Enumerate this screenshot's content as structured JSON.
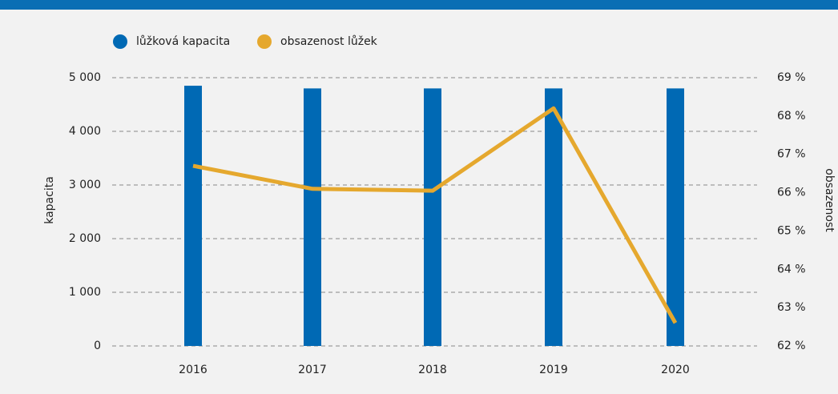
{
  "chart_data": {
    "type": "bar_line",
    "categories": [
      "2016",
      "2017",
      "2018",
      "2019",
      "2020"
    ],
    "series": [
      {
        "name": "lůžková kapacita",
        "color": "#0069b4",
        "type": "bar",
        "values": [
          4850,
          4800,
          4800,
          4800,
          4800
        ]
      },
      {
        "name": "obsazenost lůžek",
        "color": "#e5a82e",
        "type": "line",
        "axis": "y2",
        "values": [
          66.7,
          66.1,
          66.05,
          68.2,
          62.6
        ]
      }
    ],
    "ylabel": "kapacita",
    "y2label": "obsazenost",
    "ylim": [
      0,
      5000
    ],
    "yticks": [
      0,
      {
        "value": 1000,
        "label": "1 000"
      },
      {
        "value": 2000,
        "label": "2 000"
      },
      {
        "value": 3000,
        "label": "3 000"
      },
      {
        "value": 4000,
        "label": "4 000"
      },
      {
        "value": 5000,
        "label": "5 000"
      }
    ],
    "y2lim": [
      62,
      69
    ],
    "y2ticks": [
      {
        "value": 62,
        "label": "62 %"
      },
      {
        "value": 63,
        "label": "63 %"
      },
      {
        "value": 64,
        "label": "64 %"
      },
      {
        "value": 65,
        "label": "65 %"
      },
      {
        "value": 66,
        "label": "66 %"
      },
      {
        "value": 67,
        "label": "67 %"
      },
      {
        "value": 68,
        "label": "68 %"
      },
      {
        "value": 69,
        "label": "69 %"
      }
    ],
    "grid": true,
    "legend": "top-left"
  }
}
